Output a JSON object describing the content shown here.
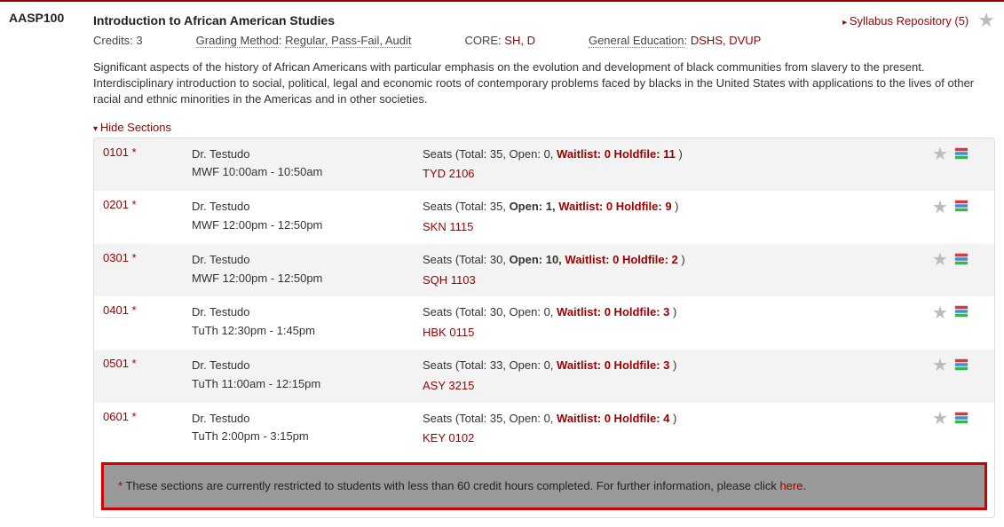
{
  "colors": {
    "brand_red": "#9a0000",
    "alert_border": "#d40000",
    "alt_row": "#f3f3f3",
    "star_gray": "#bbbbbb",
    "restriction_bg": "#999999"
  },
  "course": {
    "code": "AASP100",
    "title": "Introduction to African American Studies",
    "syllabus_link": "Syllabus Repository (5)",
    "credits_label": "Credits:",
    "credits_value": "3",
    "grading_label": "Grading Method",
    "grading_value": "Regular, Pass-Fail, Audit",
    "core_label": "CORE:",
    "core_value": "SH, D",
    "gened_label": "General Education",
    "gened_value": "DSHS, DVUP",
    "description": "Significant aspects of the history of African Americans with particular emphasis on the evolution and development of black communities from slavery to the present. Interdisciplinary introduction to social, political, legal and economic roots of contemporary problems faced by blacks in the United States with applications to the lives of other racial and ethnic minorities in the Americas and in other societies.",
    "toggle_label": "Hide Sections"
  },
  "sections": [
    {
      "id": "0101",
      "star": "*",
      "instructor": "Dr. Testudo",
      "schedule": "MWF 10:00am - 10:50am",
      "seats_pre": "Seats (Total: 35, Open: 0, ",
      "open_bold": "",
      "wl": "Waitlist: 0 Holdfile: 11",
      "seats_post": " )",
      "room": "TYD 2106",
      "alt": true
    },
    {
      "id": "0201",
      "star": "*",
      "instructor": "Dr. Testudo",
      "schedule": "MWF 12:00pm - 12:50pm",
      "seats_pre": "Seats (Total: 35, ",
      "open_bold": "Open: 1, ",
      "wl": "Waitlist: 0 Holdfile: 9",
      "seats_post": " )",
      "room": "SKN 1115",
      "alt": false
    },
    {
      "id": "0301",
      "star": "*",
      "instructor": "Dr. Testudo",
      "schedule": "MWF 12:00pm - 12:50pm",
      "seats_pre": "Seats (Total: 30, ",
      "open_bold": "Open: 10, ",
      "wl": "Waitlist: 0 Holdfile: 2",
      "seats_post": " )",
      "room": "SQH 1103",
      "alt": true
    },
    {
      "id": "0401",
      "star": "*",
      "instructor": "Dr. Testudo",
      "schedule": "TuTh 12:30pm - 1:45pm",
      "seats_pre": "Seats (Total: 30, Open: 0, ",
      "open_bold": "",
      "wl": "Waitlist: 0 Holdfile: 3",
      "seats_post": " )",
      "room": "HBK 0115",
      "alt": false
    },
    {
      "id": "0501",
      "star": "*",
      "instructor": "Dr. Testudo",
      "schedule": "TuTh 11:00am - 12:15pm",
      "seats_pre": "Seats (Total: 33, Open: 0, ",
      "open_bold": "",
      "wl": "Waitlist: 0 Holdfile: 3",
      "seats_post": " )",
      "room": "ASY 3215",
      "alt": true
    },
    {
      "id": "0601",
      "star": "*",
      "instructor": "Dr. Testudo",
      "schedule": "TuTh 2:00pm - 3:15pm",
      "seats_pre": "Seats (Total: 35, Open: 0, ",
      "open_bold": "",
      "wl": "Waitlist: 0 Holdfile: 4",
      "seats_post": " )",
      "room": "KEY 0102",
      "alt": false
    }
  ],
  "restriction": {
    "asterisk": "*",
    "text": " These sections are currently restricted to students with less than 60 credit hours completed. For further information, please click ",
    "here": "here",
    "period": "."
  }
}
